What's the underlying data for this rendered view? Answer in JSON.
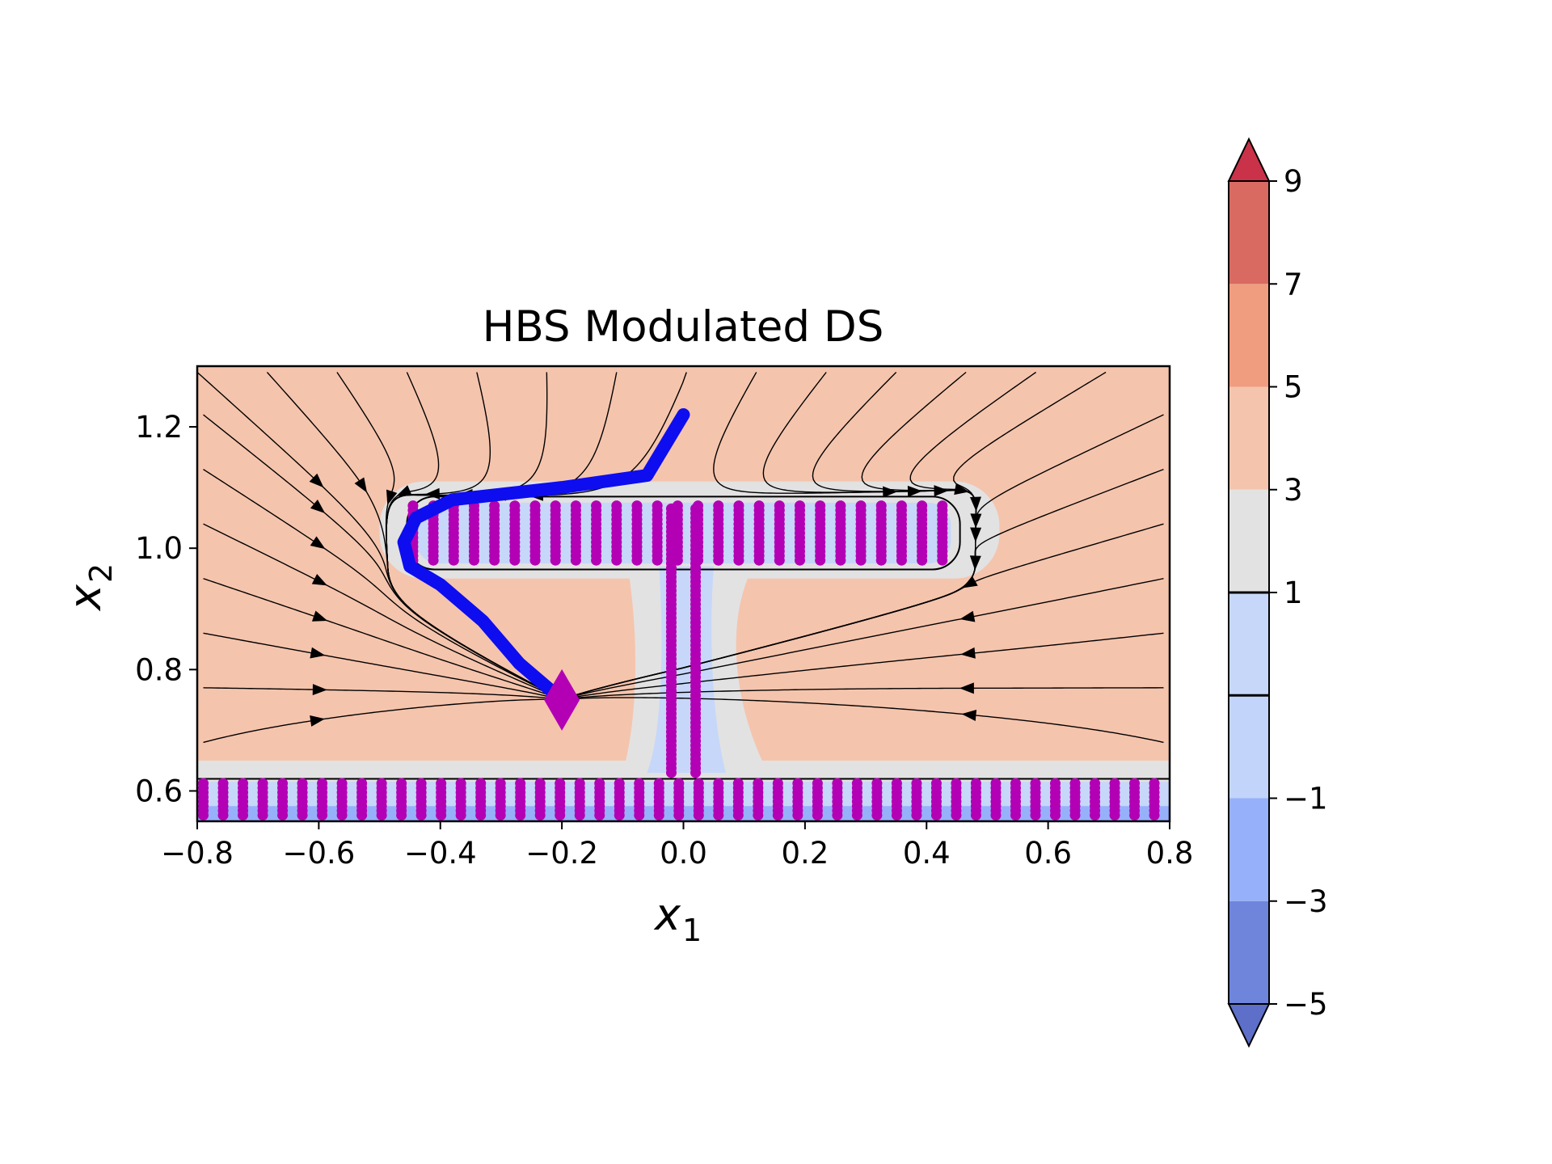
{
  "chart_data": {
    "type": "contour_streamplot",
    "title": "HBS Modulated DS",
    "xlabel": "x",
    "xlabel_sub": "1",
    "ylabel": "x",
    "ylabel_sub": "2",
    "xlim": [
      -0.8,
      0.8
    ],
    "ylim": [
      0.55,
      1.3
    ],
    "x_ticks": [
      -0.8,
      -0.6,
      -0.4,
      -0.2,
      0.0,
      0.2,
      0.4,
      0.6,
      0.8
    ],
    "x_tick_labels": [
      "−0.8",
      "−0.6",
      "−0.4",
      "−0.2",
      "0.0",
      "0.2",
      "0.4",
      "0.6",
      "0.8"
    ],
    "y_ticks": [
      0.6,
      0.8,
      1.0,
      1.2
    ],
    "y_tick_labels": [
      "0.6",
      "0.8",
      "1.0",
      "1.2"
    ],
    "grid": false,
    "colorbar": {
      "levels": [
        -5,
        -3,
        -1,
        0,
        1,
        3,
        5,
        7,
        9
      ],
      "tick_values": [
        9,
        7,
        5,
        3,
        1,
        -1,
        -3,
        -5
      ],
      "tick_labels": [
        "9",
        "7",
        "5",
        "3",
        "1",
        "−1",
        "−3",
        "−5"
      ],
      "band_colors": [
        "#6f85db",
        "#97b0fa",
        "#c2d4fa",
        "#c6d7f9",
        "#e2e2e2",
        "#f5c4ad",
        "#f09c7f",
        "#d86a62"
      ],
      "extend_low_color": "#5d6fc9",
      "extend_high_color": "#c93249",
      "contour_lines_at": [
        0,
        1
      ]
    },
    "colors": {
      "background_field": "#f5c4ad",
      "near_boundary_field": "#e2e2e2",
      "inside_field": "#c6d7f9",
      "obstacle_points": "#b400b4",
      "trajectory": "#0d0df0",
      "target": "#b400b4"
    },
    "series": [
      {
        "name": "",
        "kind": "trajectory",
        "x": [
          0.0,
          -0.06,
          -0.2,
          -0.38,
          -0.44,
          -0.46,
          -0.45,
          -0.4,
          -0.33,
          -0.27,
          -0.2
        ],
        "y": [
          1.22,
          1.12,
          1.1,
          1.08,
          1.05,
          1.01,
          0.97,
          0.94,
          0.88,
          0.81,
          0.75
        ]
      },
      {
        "name": "",
        "kind": "target",
        "x": [
          -0.2
        ],
        "y": [
          0.75
        ]
      },
      {
        "name": "",
        "kind": "obstacle_boundary_points",
        "blocks": [
          {
            "x_from": -0.445,
            "x_to": 0.445,
            "x_step": 0.0335,
            "y_from": 0.98,
            "y_to": 1.07
          },
          {
            "x_from": -0.02,
            "x_to": 0.02,
            "x_step": 0.04,
            "y_from": 0.63,
            "y_to": 1.07
          },
          {
            "x_from": -0.79,
            "x_to": 0.79,
            "x_step": 0.0326,
            "y_from": 0.56,
            "y_to": 0.615
          }
        ]
      }
    ]
  }
}
